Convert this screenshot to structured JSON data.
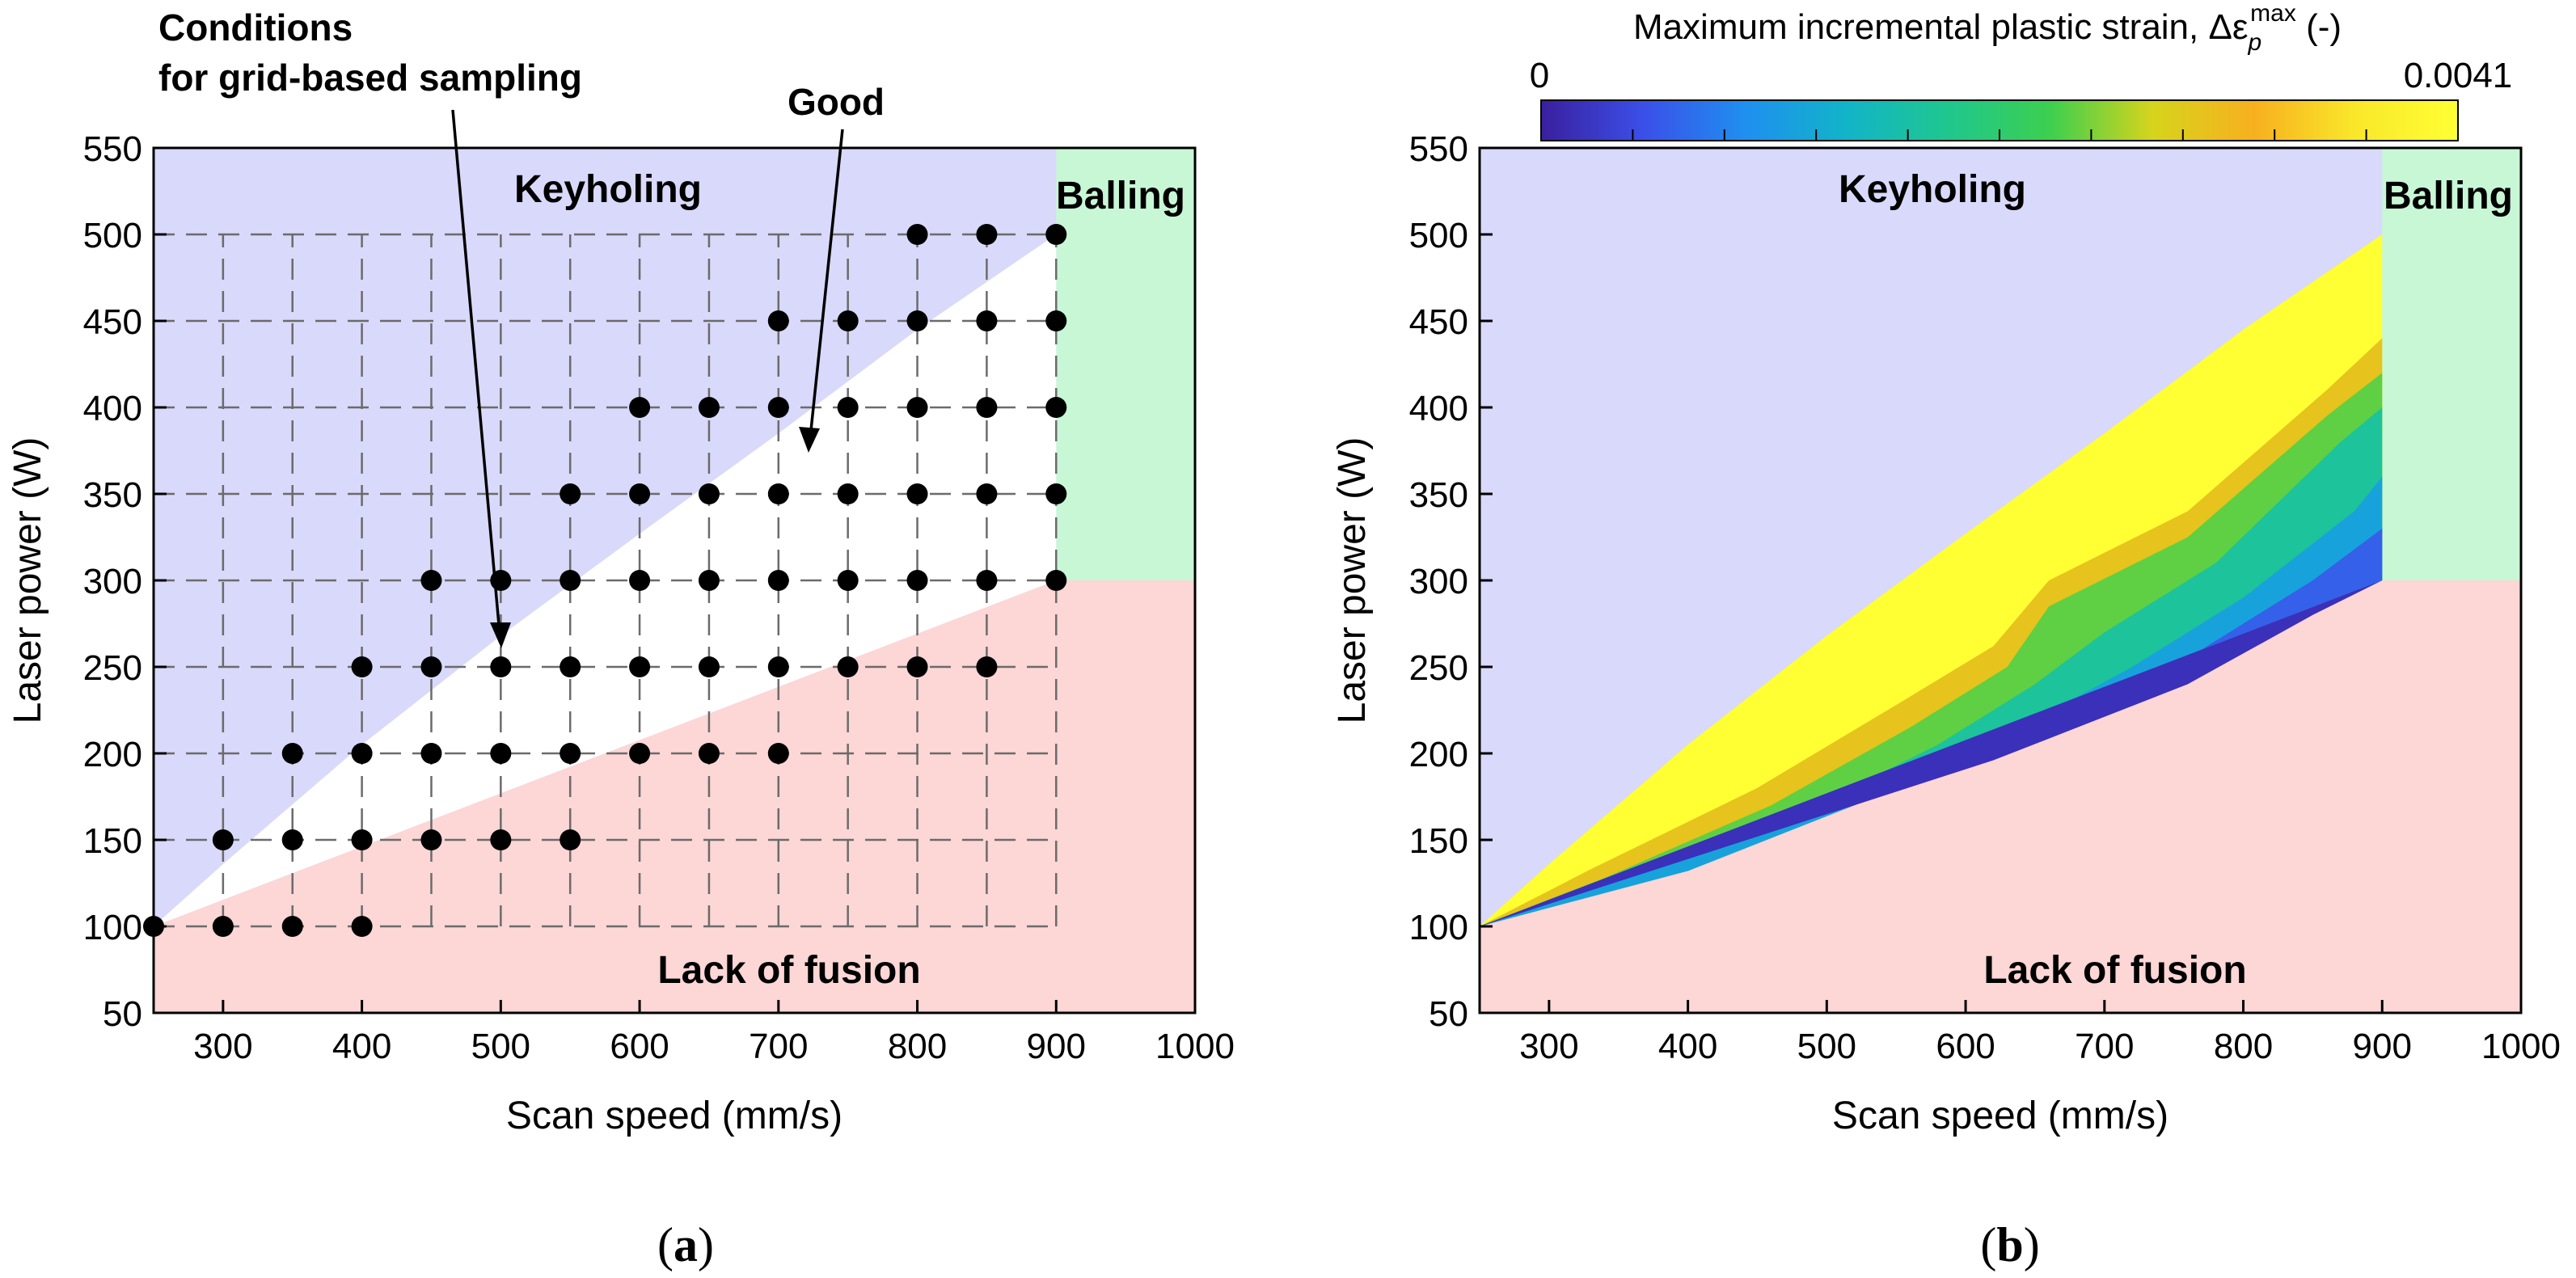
{
  "chart_data": [
    {
      "type": "scatter",
      "panel": "a",
      "xlabel": "Scan speed (mm/s)",
      "ylabel": "Laser power (W)",
      "xlim": [
        250,
        1000
      ],
      "ylim": [
        50,
        550
      ],
      "xticks": [
        300,
        400,
        500,
        600,
        700,
        800,
        900,
        1000
      ],
      "yticks": [
        50,
        100,
        150,
        200,
        250,
        300,
        350,
        400,
        450,
        500,
        550
      ],
      "grid": "dashed grid over sampling domain 250-900 mm/s, 100-500 W, 50 step",
      "regions": {
        "keyholing": "Keyholing",
        "balling": "Balling",
        "lack_of_fusion": "Lack of fusion",
        "good": "Good"
      },
      "boundaries": {
        "keyhole_upper": [
          [
            250,
            100
          ],
          [
            300,
            136
          ],
          [
            400,
            205
          ],
          [
            500,
            268
          ],
          [
            600,
            327
          ],
          [
            700,
            385
          ],
          [
            800,
            445
          ],
          [
            900,
            500
          ]
        ],
        "lof_lower": [
          [
            250,
            100
          ],
          [
            900,
            300
          ]
        ],
        "balling_x": 900,
        "balling_split_y": 300
      },
      "annotations": {
        "conditions_line1": "Conditions",
        "conditions_line2": "for grid-based sampling",
        "good": "Good"
      },
      "points": [
        [
          250,
          100
        ],
        [
          300,
          100
        ],
        [
          350,
          100
        ],
        [
          400,
          100
        ],
        [
          300,
          150
        ],
        [
          350,
          150
        ],
        [
          400,
          150
        ],
        [
          450,
          150
        ],
        [
          500,
          150
        ],
        [
          550,
          150
        ],
        [
          350,
          200
        ],
        [
          400,
          200
        ],
        [
          450,
          200
        ],
        [
          500,
          200
        ],
        [
          550,
          200
        ],
        [
          600,
          200
        ],
        [
          650,
          200
        ],
        [
          700,
          200
        ],
        [
          400,
          250
        ],
        [
          450,
          250
        ],
        [
          500,
          250
        ],
        [
          550,
          250
        ],
        [
          600,
          250
        ],
        [
          650,
          250
        ],
        [
          700,
          250
        ],
        [
          750,
          250
        ],
        [
          800,
          250
        ],
        [
          850,
          250
        ],
        [
          450,
          300
        ],
        [
          500,
          300
        ],
        [
          550,
          300
        ],
        [
          600,
          300
        ],
        [
          650,
          300
        ],
        [
          700,
          300
        ],
        [
          750,
          300
        ],
        [
          800,
          300
        ],
        [
          850,
          300
        ],
        [
          900,
          300
        ],
        [
          550,
          350
        ],
        [
          600,
          350
        ],
        [
          650,
          350
        ],
        [
          700,
          350
        ],
        [
          750,
          350
        ],
        [
          800,
          350
        ],
        [
          850,
          350
        ],
        [
          900,
          350
        ],
        [
          600,
          400
        ],
        [
          650,
          400
        ],
        [
          700,
          400
        ],
        [
          750,
          400
        ],
        [
          800,
          400
        ],
        [
          850,
          400
        ],
        [
          900,
          400
        ],
        [
          700,
          450
        ],
        [
          750,
          450
        ],
        [
          800,
          450
        ],
        [
          850,
          450
        ],
        [
          900,
          450
        ],
        [
          800,
          500
        ],
        [
          850,
          500
        ],
        [
          900,
          500
        ]
      ]
    },
    {
      "type": "heatmap",
      "panel": "b",
      "xlabel": "Scan speed (mm/s)",
      "ylabel": "Laser power (W)",
      "xlim": [
        250,
        1000
      ],
      "ylim": [
        50,
        550
      ],
      "xticks": [
        300,
        400,
        500,
        600,
        700,
        800,
        900,
        1000
      ],
      "yticks": [
        50,
        100,
        150,
        200,
        250,
        300,
        350,
        400,
        450,
        500,
        550
      ],
      "colorbar": {
        "title_text": "Maximum incremental plastic strain, Δε",
        "title_sub": "p",
        "title_sup": "max",
        "title_suffix": " (-)",
        "min_label": "0",
        "max_label": "0.0041",
        "min": 0,
        "max": 0.0041,
        "colors": [
          "#3a1f9e",
          "#3b4fe8",
          "#1f8ff0",
          "#12b4c8",
          "#1fc78e",
          "#3dcf4f",
          "#d6d41c",
          "#f7b01f",
          "#f9e82a",
          "#ffff33"
        ]
      },
      "regions": {
        "keyholing": "Keyholing",
        "balling": "Balling",
        "lack_of_fusion": "Lack of fusion"
      },
      "field_bands": [
        {
          "value_frac": 1.0,
          "upper": [
            [
              250,
              100
            ],
            [
              300,
              136
            ],
            [
              400,
              205
            ],
            [
              500,
              268
            ],
            [
              600,
              327
            ],
            [
              700,
              385
            ],
            [
              800,
              445
            ],
            [
              900,
              500
            ]
          ]
        },
        {
          "value_frac": 0.72,
          "upper": [
            [
              250,
              100
            ],
            [
              330,
              133
            ],
            [
              450,
              180
            ],
            [
              550,
              228
            ],
            [
              620,
              262
            ],
            [
              660,
              300
            ],
            [
              760,
              340
            ],
            [
              860,
              410
            ],
            [
              900,
              440
            ]
          ]
        },
        {
          "value_frac": 0.58,
          "upper": [
            [
              250,
              100
            ],
            [
              340,
              128
            ],
            [
              460,
              170
            ],
            [
              560,
              215
            ],
            [
              630,
              250
            ],
            [
              660,
              285
            ],
            [
              760,
              325
            ],
            [
              860,
              395
            ],
            [
              900,
              420
            ]
          ]
        },
        {
          "value_frac": 0.42,
          "upper": [
            [
              250,
              100
            ],
            [
              360,
              124
            ],
            [
              480,
              165
            ],
            [
              580,
              205
            ],
            [
              650,
              240
            ],
            [
              700,
              270
            ],
            [
              780,
              310
            ],
            [
              870,
              380
            ],
            [
              900,
              400
            ]
          ]
        },
        {
          "value_frac": 0.28,
          "upper": [
            [
              250,
              100
            ],
            [
              400,
              132
            ],
            [
              520,
              170
            ],
            [
              640,
              215
            ],
            [
              720,
              250
            ],
            [
              800,
              290
            ],
            [
              880,
              340
            ],
            [
              900,
              360
            ]
          ]
        },
        {
          "value_frac": 0.14,
          "upper": [
            [
              250,
              100
            ],
            [
              500,
              165
            ],
            [
              650,
              210
            ],
            [
              760,
              255
            ],
            [
              850,
              300
            ],
            [
              900,
              330
            ]
          ]
        },
        {
          "value_frac": 0.04,
          "upper": [
            [
              250,
              100
            ],
            [
              620,
              196
            ],
            [
              760,
              240
            ],
            [
              850,
              280
            ],
            [
              900,
              300
            ]
          ]
        }
      ],
      "lof_lower": [
        [
          250,
          100
        ],
        [
          900,
          300
        ]
      ],
      "balling_x": 900,
      "balling_split_y": 300
    }
  ],
  "panel_labels": {
    "a_open": "(",
    "a": "a",
    "a_close": ")",
    "b_open": "(",
    "b": "b",
    "b_close": ")"
  }
}
